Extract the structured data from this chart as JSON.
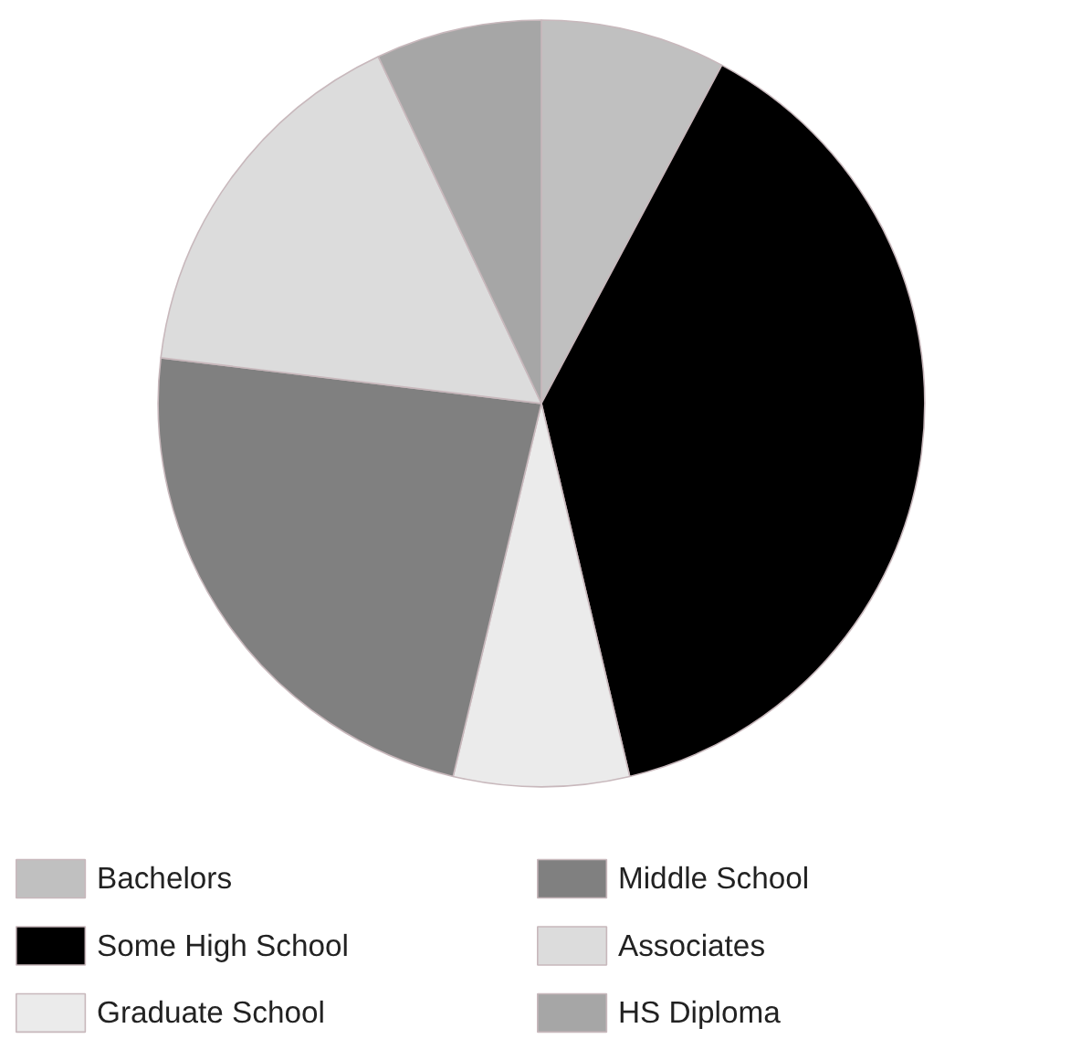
{
  "chart_data": {
    "type": "pie",
    "categories": [
      "Bachelors",
      "Some High School",
      "Graduate School",
      "Middle School",
      "Associates",
      "HS Diploma"
    ],
    "values": [
      7.8,
      38.5,
      7.4,
      23.2,
      16.1,
      7.0
    ],
    "colors": [
      "#c0c0c0",
      "#000000",
      "#ebebeb",
      "#808080",
      "#dcdcdc",
      "#a6a6a6"
    ],
    "legend": "bottom"
  }
}
